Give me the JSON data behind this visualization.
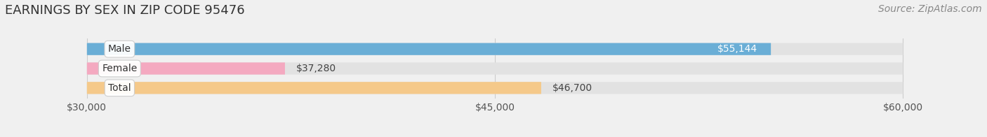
{
  "title": "EARNINGS BY SEX IN ZIP CODE 95476",
  "source": "Source: ZipAtlas.com",
  "categories": [
    "Male",
    "Female",
    "Total"
  ],
  "values": [
    55144,
    37280,
    46700
  ],
  "bar_colors": [
    "#6aaed6",
    "#f4a9c0",
    "#f5c98a"
  ],
  "bar_labels": [
    "$55,144",
    "$37,280",
    "$46,700"
  ],
  "x_min": 30000,
  "x_max": 60000,
  "x_ticks": [
    30000,
    45000,
    60000
  ],
  "x_tick_labels": [
    "$30,000",
    "$45,000",
    "$60,000"
  ],
  "background_color": "#f0f0f0",
  "bar_background_color": "#e2e2e2",
  "title_fontsize": 13,
  "source_fontsize": 10,
  "label_fontsize": 10,
  "tick_fontsize": 10,
  "bar_height": 0.62,
  "bar_spacing": 1.0
}
